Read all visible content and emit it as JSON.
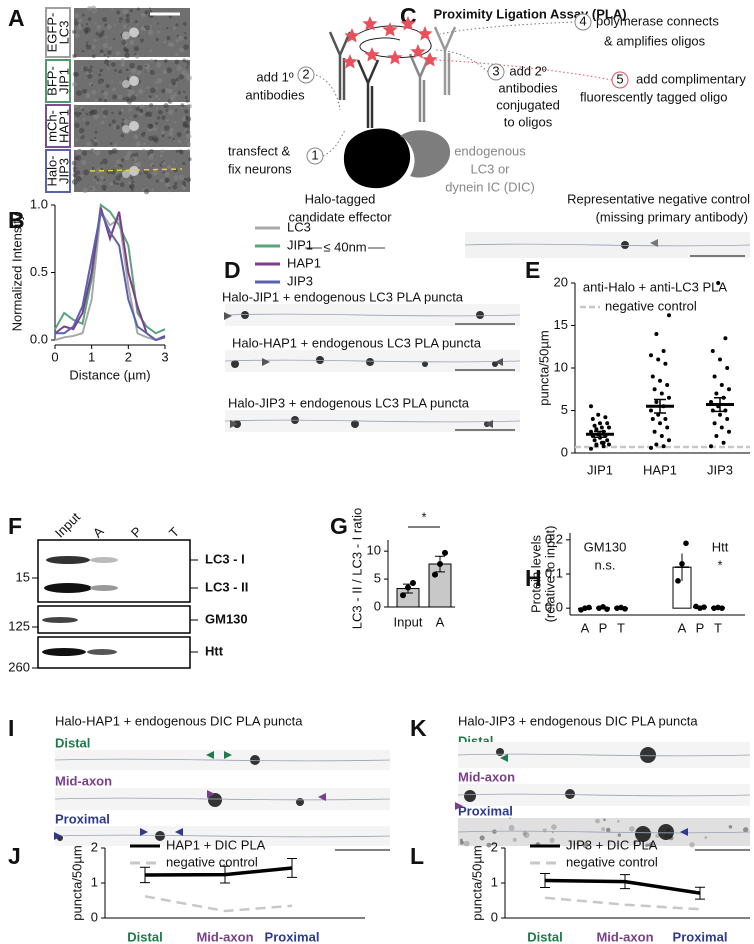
{
  "A": {
    "letter": "A",
    "labels": [
      [
        "EGFP-",
        "LC3"
      ],
      [
        "BFP-",
        "JIP1"
      ],
      [
        "mCh-",
        "HAP1"
      ],
      [
        "Halo-",
        "JIP3"
      ]
    ],
    "colors": [
      "#9e9e9e",
      "#4f9a6a",
      "#7b4f8a",
      "#5a62a8"
    ]
  },
  "B": {
    "letter": "B",
    "type": "line",
    "ylabel": "Normalized Intensity",
    "xlabel": "Distance (µm)",
    "x": [
      0,
      0.25,
      0.5,
      0.75,
      1,
      1.25,
      1.5,
      1.75,
      2,
      2.25,
      2.5,
      2.75,
      3
    ],
    "xlim": [
      0,
      3
    ],
    "xticks": [
      0,
      1,
      2,
      3
    ],
    "ylim": [
      0,
      1
    ],
    "yticks": [
      {
        "value": 0,
        "label": "0.0"
      },
      {
        "value": 0.5,
        "label": "0.5"
      },
      {
        "value": 1,
        "label": "1.0"
      }
    ],
    "series": [
      {
        "name": "LC3",
        "color": "#a8a8a8",
        "values": [
          0,
          0.02,
          0.03,
          0.05,
          0.3,
          0.95,
          0.85,
          0.9,
          0.4,
          0.05,
          0.02,
          0,
          0.02
        ]
      },
      {
        "name": "JIP1",
        "color": "#5aa47a",
        "values": [
          0.08,
          0.2,
          0.15,
          0.12,
          0.45,
          1,
          0.95,
          0.85,
          0.7,
          0.2,
          0.1,
          0.05,
          0.08
        ]
      },
      {
        "name": "HAP1",
        "color": "#7b3f8a",
        "values": [
          0.05,
          0.1,
          0.08,
          0.2,
          0.5,
          0.98,
          0.75,
          0.95,
          0.5,
          0.25,
          0.05,
          0,
          0.03
        ]
      },
      {
        "name": "JIP3",
        "color": "#5a62b0",
        "values": [
          0.05,
          0.05,
          0.1,
          0.25,
          0.6,
          0.95,
          0.8,
          0.7,
          0.3,
          0.1,
          0.05,
          0,
          0.02
        ]
      }
    ]
  },
  "C": {
    "letter": "C",
    "title": "Proximity Ligation Assay (PLA)",
    "steps": [
      {
        "number": 1,
        "text": [
          "transfect &",
          "fix neurons"
        ]
      },
      {
        "number": 2,
        "text": [
          "add 1º",
          "antibodies"
        ]
      },
      {
        "number": 3,
        "text": [
          "add 2º",
          "antibodies",
          "conjugated",
          "to oligos"
        ]
      },
      {
        "number": 4,
        "text": [
          "polymerase connects",
          "& amplifies oligos"
        ]
      },
      {
        "number": 5,
        "text": [
          "add complimentary",
          "fluorescently tagged oligo"
        ]
      }
    ],
    "effector": [
      "Halo-tagged",
      "candidate effector"
    ],
    "endogenous": [
      "endogenous",
      "LC3 or",
      "dynein IC (DIC)"
    ],
    "distance": "≤ 40nm",
    "negative_control": [
      "Representative negative control",
      "(missing primary antibody)"
    ]
  },
  "D": {
    "letter": "D",
    "captions": [
      "Halo-JIP1 + endogenous LC3 PLA puncta",
      "Halo-HAP1 + endogenous LC3 PLA puncta",
      "Halo-JIP3 + endogenous LC3 PLA puncta"
    ]
  },
  "E": {
    "letter": "E",
    "type": "dot",
    "title": "anti-Halo + anti-LC3 PLA",
    "ylabel": "puncta/50µm",
    "categories": [
      "JIP1",
      "HAP1",
      "JIP3"
    ],
    "means": [
      2.2,
      5.5,
      5.7
    ],
    "errors": [
      0.35,
      0.8,
      0.8
    ],
    "points": [
      [
        0.5,
        0.8,
        1,
        1,
        1.2,
        1.5,
        1.5,
        1.8,
        2,
        2,
        2.2,
        2.5,
        2.5,
        2.8,
        3,
        3,
        3.2,
        3.5,
        3.5,
        4,
        4.2,
        4.5,
        5.5,
        1.2,
        0.9
      ],
      [
        0.6,
        0.8,
        1,
        1.5,
        2,
        2.5,
        3,
        3.5,
        4,
        4,
        4.5,
        5,
        5.5,
        6,
        6.5,
        7,
        7.5,
        8,
        8.5,
        9,
        10.5,
        11,
        11.5,
        12,
        14,
        16.2
      ],
      [
        0.8,
        1.2,
        2,
        2.5,
        3,
        3.5,
        4,
        4.5,
        5,
        5,
        5.5,
        6,
        6.5,
        7,
        7.5,
        8,
        9,
        10,
        11,
        12,
        13.5,
        20
      ]
    ],
    "negative_control": {
      "name": "negative control",
      "value": 0.7
    },
    "ylim": [
      0,
      20
    ],
    "yticks": [
      0,
      5,
      10,
      15,
      20
    ]
  },
  "F": {
    "letter": "F",
    "lanes": [
      "Input",
      "A",
      "P",
      "T"
    ],
    "markers": [
      15,
      125,
      260
    ],
    "bands": [
      "LC3 - I",
      "LC3 - II",
      "GM130",
      "Htt"
    ]
  },
  "G": {
    "letter": "G",
    "type": "bar",
    "ylabel": "LC3 - II / LC3 - I ratio",
    "categories": [
      "Input",
      "A"
    ],
    "values": [
      3.3,
      7.7
    ],
    "errors": [
      0.8,
      1.4
    ],
    "points": [
      [
        2.1,
        3.5,
        4.3
      ],
      [
        5.8,
        7.7,
        9.7
      ]
    ],
    "ylim": [
      0,
      12
    ],
    "yticks": [
      0,
      5,
      10
    ],
    "significance": "*",
    "color": "#c8c8c8"
  },
  "H": {
    "letter": "H",
    "type": "dot",
    "ylabel": [
      "Protein levels",
      "(relative to input)"
    ],
    "groups": [
      {
        "name": "GM130",
        "significance": "n.s."
      },
      {
        "name": "Htt",
        "significance": "*"
      }
    ],
    "categories": [
      "A",
      "P",
      "T",
      "A",
      "P",
      "T"
    ],
    "means": [
      -0.001,
      0.0003,
      0,
      0.12,
      0.003,
      0.0007
    ],
    "errors": [
      0.003,
      0.002,
      0.002,
      0.04,
      0.002,
      0.001
    ],
    "points": [
      [
        -0.005,
        0,
        0.002
      ],
      [
        0,
        0.004,
        -0.003
      ],
      [
        0,
        0.002,
        -0.002
      ],
      [
        0.08,
        0.13,
        0.19
      ],
      [
        0.005,
        0,
        0.003
      ],
      [
        0,
        0.002,
        0
      ]
    ],
    "ylim": [
      -0.02,
      0.22
    ],
    "yticks": [
      {
        "value": 0,
        "label": "0.0"
      },
      {
        "value": 0.1,
        "label": "0.1"
      },
      {
        "value": 0.2,
        "label": "0.2"
      }
    ]
  },
  "I": {
    "letter": "I",
    "title": "Halo-HAP1 + endogenous DIC PLA puncta",
    "regions": [
      "Distal",
      "Mid-axon",
      "Proximal"
    ]
  },
  "J": {
    "letter": "J",
    "type": "line",
    "ylabel": "puncta/50µm",
    "categories": [
      "Distal",
      "Mid-axon",
      "Proximal"
    ],
    "ylim": [
      0,
      2
    ],
    "yticks": [
      0,
      1,
      2
    ],
    "series": [
      {
        "name": "HAP1 + DIC PLA",
        "color": "#000000",
        "values": [
          1.23,
          1.24,
          1.43
        ],
        "errors": [
          0.22,
          0.24,
          0.27
        ]
      },
      {
        "name": "negative control",
        "color": "#c8c8c8",
        "dashed": true,
        "values": [
          0.62,
          0.2,
          0.35
        ]
      }
    ]
  },
  "K": {
    "letter": "K",
    "title": "Halo-JIP3 + endogenous DIC PLA puncta",
    "regions": [
      "Distal",
      "Mid-axon",
      "Proximal"
    ]
  },
  "L": {
    "letter": "L",
    "type": "line",
    "ylabel": "puncta/50µm",
    "categories": [
      "Distal",
      "Mid-axon",
      "Proximal"
    ],
    "ylim": [
      0,
      2
    ],
    "yticks": [
      0,
      1,
      2
    ],
    "series": [
      {
        "name": "JIP3 + DIC PLA",
        "color": "#000000",
        "values": [
          1.07,
          1.04,
          0.71
        ],
        "errors": [
          0.2,
          0.2,
          0.17
        ]
      },
      {
        "name": "negative control",
        "color": "#c8c8c8",
        "dashed": true,
        "values": [
          0.58,
          0.38,
          0.25
        ]
      }
    ]
  },
  "region_colors": [
    "#1e7a4a",
    "#7b3f8a",
    "#2e3a8c"
  ]
}
